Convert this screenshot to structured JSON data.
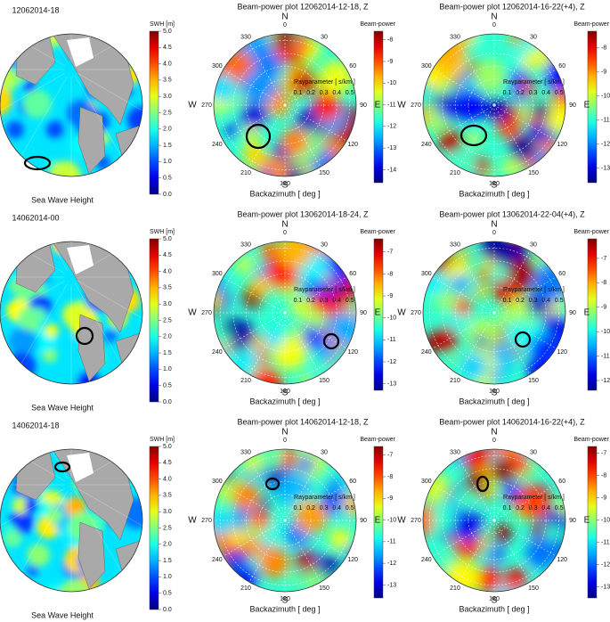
{
  "chart_data": [
    {
      "type": "map",
      "title": "12062014-18",
      "colorbar_label": "SWH [m]",
      "clim": [
        0,
        5
      ],
      "cticks": [
        {
          "value": 0,
          "label": "0.0"
        },
        {
          "value": 0.5,
          "label": "0.5"
        },
        {
          "value": 1,
          "label": "1.0"
        },
        {
          "value": 1.5,
          "label": "1.5"
        },
        {
          "value": 2,
          "label": "2.0"
        },
        {
          "value": 2.5,
          "label": "2.5"
        },
        {
          "value": 3,
          "label": "3.0"
        },
        {
          "value": 3.5,
          "label": "3.5"
        },
        {
          "value": 4,
          "label": "4.0"
        },
        {
          "value": 4.5,
          "label": "4.5"
        },
        {
          "value": 5,
          "label": "5.0"
        }
      ],
      "xlabel": "Sea Wave Height"
    },
    {
      "type": "polar-heatmap",
      "title": "Beam-power plot 12062014-12-18, Z",
      "colorbar_label": "Beam-power",
      "clim": [
        -14.6,
        -7.6
      ],
      "cticks": [
        -8,
        -9,
        -10,
        -11,
        -12,
        -13,
        -14
      ],
      "xlabel": "Backazimuth [ deg ]",
      "radial_label": "Rayparameter [ s/km ]",
      "rlim": [
        0,
        0.55
      ],
      "rticks": [
        0.1,
        0.2,
        0.3,
        0.4,
        0.5
      ],
      "theta_ticks": [
        0,
        30,
        60,
        90,
        120,
        150,
        180,
        210,
        240,
        270,
        300,
        330
      ],
      "directions": [
        "N",
        "E",
        "S",
        "W"
      ]
    },
    {
      "type": "polar-heatmap",
      "title": "Beam-power plot 12062014-16-22(+4), Z",
      "colorbar_label": "Beam-power",
      "clim": [
        -13.6,
        -7.3
      ],
      "cticks": [
        -8,
        -9,
        -10,
        -11,
        -12,
        -13
      ],
      "xlabel": "Backazimuth [ deg ]",
      "radial_label": "Rayparameter [ s/km ]",
      "rlim": [
        0,
        0.55
      ],
      "rticks": [
        0.1,
        0.2,
        0.3,
        0.4,
        0.5
      ],
      "theta_ticks": [
        0,
        30,
        60,
        90,
        120,
        150,
        180,
        210,
        240,
        270,
        300,
        330
      ],
      "directions": [
        "N",
        "E",
        "S",
        "W"
      ]
    },
    {
      "type": "map",
      "title": "14062014-00",
      "colorbar_label": "SWH [m]",
      "clim": [
        0,
        5
      ],
      "cticks": [
        {
          "value": 0,
          "label": "0.0"
        },
        {
          "value": 0.5,
          "label": "0.5"
        },
        {
          "value": 1,
          "label": "1.0"
        },
        {
          "value": 1.5,
          "label": "1.5"
        },
        {
          "value": 2,
          "label": "2.0"
        },
        {
          "value": 2.5,
          "label": "2.5"
        },
        {
          "value": 3,
          "label": "3.0"
        },
        {
          "value": 3.5,
          "label": "3.5"
        },
        {
          "value": 4,
          "label": "4.0"
        },
        {
          "value": 4.5,
          "label": "4.5"
        },
        {
          "value": 5,
          "label": "5.0"
        }
      ],
      "xlabel": "Sea Wave Height"
    },
    {
      "type": "polar-heatmap",
      "title": "Beam-power plot 13062014-18-24, Z",
      "colorbar_label": "Beam-power",
      "clim": [
        -13.3,
        -6.4
      ],
      "cticks": [
        -7,
        -8,
        -9,
        -10,
        -11,
        -12,
        -13
      ],
      "xlabel": "Backazimuth [ deg ]",
      "radial_label": "Rayparameter [ s/km ]",
      "rlim": [
        0,
        0.55
      ],
      "rticks": [
        0.1,
        0.2,
        0.3,
        0.4,
        0.5
      ],
      "theta_ticks": [
        0,
        30,
        60,
        90,
        120,
        150,
        180,
        210,
        240,
        270,
        300,
        330
      ],
      "directions": [
        "N",
        "E",
        "S",
        "W"
      ]
    },
    {
      "type": "polar-heatmap",
      "title": "Beam-power plot 13062014-22-04(+4), Z",
      "colorbar_label": "Beam-power",
      "clim": [
        -12.4,
        -6.2
      ],
      "cticks": [
        -7,
        -8,
        -9,
        -10,
        -11,
        -12
      ],
      "xlabel": "Backazimuth [ deg ]",
      "radial_label": "Rayparameter [ s/km ]",
      "rlim": [
        0,
        0.55
      ],
      "rticks": [
        0.1,
        0.2,
        0.3,
        0.4,
        0.5
      ],
      "theta_ticks": [
        0,
        30,
        60,
        90,
        120,
        150,
        180,
        210,
        240,
        270,
        300,
        330
      ],
      "directions": [
        "N",
        "E",
        "S",
        "W"
      ]
    },
    {
      "type": "map",
      "title": "14062014-18",
      "colorbar_label": "SWH [m]",
      "clim": [
        0,
        5
      ],
      "cticks": [
        {
          "value": 0,
          "label": "0.0"
        },
        {
          "value": 0.5,
          "label": "0.5"
        },
        {
          "value": 1,
          "label": "1.0"
        },
        {
          "value": 1.5,
          "label": "1.5"
        },
        {
          "value": 2,
          "label": "2.0"
        },
        {
          "value": 2.5,
          "label": "2.5"
        },
        {
          "value": 3,
          "label": "3.0"
        },
        {
          "value": 3.5,
          "label": "3.5"
        },
        {
          "value": 4,
          "label": "4.0"
        },
        {
          "value": 4.5,
          "label": "4.5"
        },
        {
          "value": 5,
          "label": "5.0"
        }
      ],
      "xlabel": "Sea Wave Height"
    },
    {
      "type": "polar-heatmap",
      "title": "Beam-power plot 14062014-12-18, Z",
      "colorbar_label": "Beam-power",
      "clim": [
        -13.6,
        -6.6
      ],
      "cticks": [
        -7,
        -8,
        -9,
        -10,
        -11,
        -12,
        -13
      ],
      "xlabel": "Backazimuth [ deg ]",
      "radial_label": "Rayparameter [ s/km ]",
      "rlim": [
        0,
        0.55
      ],
      "rticks": [
        0.1,
        0.2,
        0.3,
        0.4,
        0.5
      ],
      "theta_ticks": [
        0,
        30,
        60,
        90,
        120,
        150,
        180,
        210,
        240,
        270,
        300,
        330
      ],
      "directions": [
        "N",
        "E",
        "S",
        "W"
      ]
    },
    {
      "type": "polar-heatmap",
      "title": "Beam-power plot 14062014-16-22(+4), Z",
      "colorbar_label": "Beam-power",
      "clim": [
        -13.5,
        -6.7
      ],
      "cticks": [
        -7,
        -8,
        -9,
        -10,
        -11,
        -12,
        -13
      ],
      "xlabel": "Backazimuth [ deg ]",
      "radial_label": "Rayparameter [ s/km ]",
      "rlim": [
        0,
        0.55
      ],
      "rticks": [
        0.1,
        0.2,
        0.3,
        0.4,
        0.5
      ],
      "theta_ticks": [
        0,
        30,
        60,
        90,
        120,
        150,
        180,
        210,
        240,
        270,
        300,
        330
      ],
      "directions": [
        "N",
        "E",
        "S",
        "W"
      ]
    }
  ]
}
